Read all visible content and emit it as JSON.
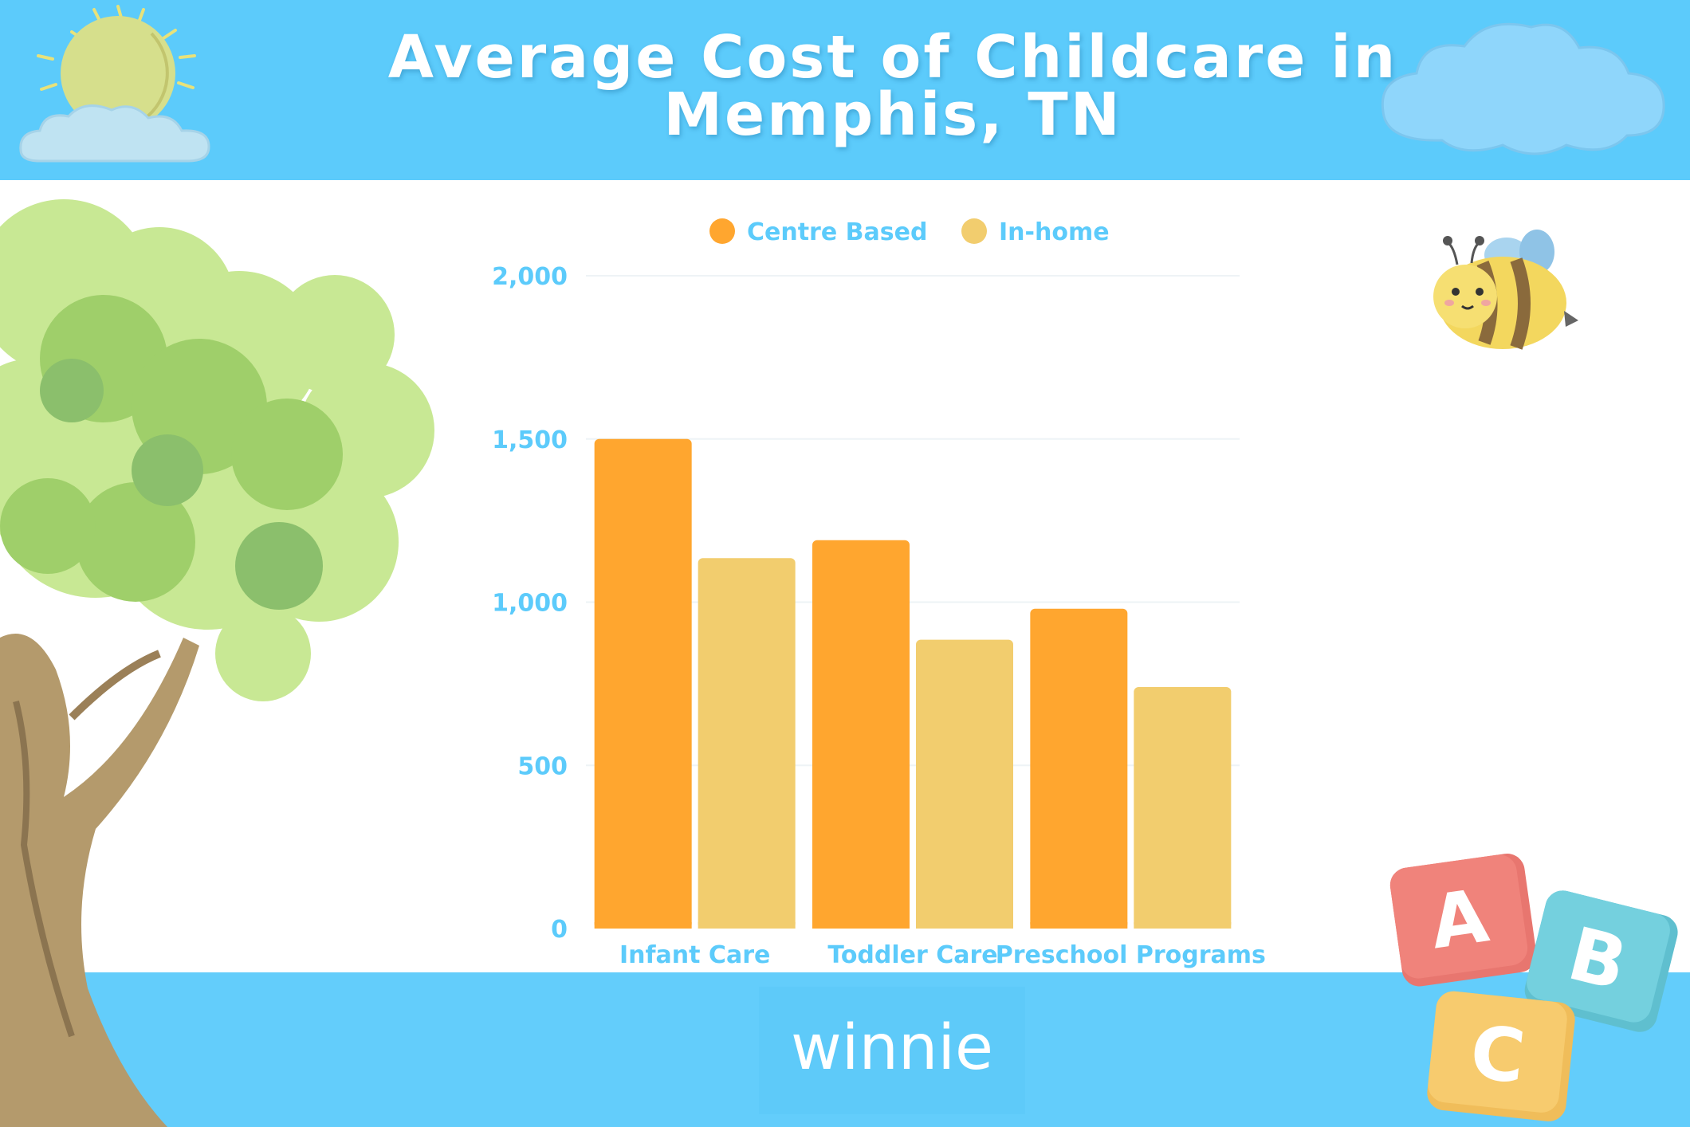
{
  "page": {
    "title": "Average Cost of Childcare in Memphis, TN",
    "brand": "winnie"
  },
  "decorations": {
    "icons": [
      "sun-icon",
      "cloud-icon",
      "tree-icon",
      "bee-icon",
      "abc-blocks-icon"
    ],
    "block_letters": [
      "A",
      "B",
      "C"
    ]
  },
  "colors": {
    "header": "#5ccbfb",
    "footer": "#63cdfb",
    "axis_text": "#5ccbfb",
    "centre_based": "#ffa62f",
    "in_home": "#f2cd6e"
  },
  "chart_data": {
    "type": "bar",
    "title": "Average Cost of Childcare in Memphis, TN",
    "categories": [
      "Infant Care",
      "Toddler Care",
      "Preschool Programs"
    ],
    "series": [
      {
        "name": "Centre Based",
        "values": [
          1500,
          1190,
          980
        ],
        "color": "#ffa62f"
      },
      {
        "name": "In-home",
        "values": [
          1135,
          885,
          740
        ],
        "color": "#f2cd6e"
      }
    ],
    "yticks": [
      "0",
      "500",
      "1,000",
      "1,500",
      "2,000"
    ],
    "ylim": [
      0,
      2000
    ],
    "xlabel": "",
    "ylabel": "",
    "grid": true,
    "legend_position": "top-center"
  }
}
